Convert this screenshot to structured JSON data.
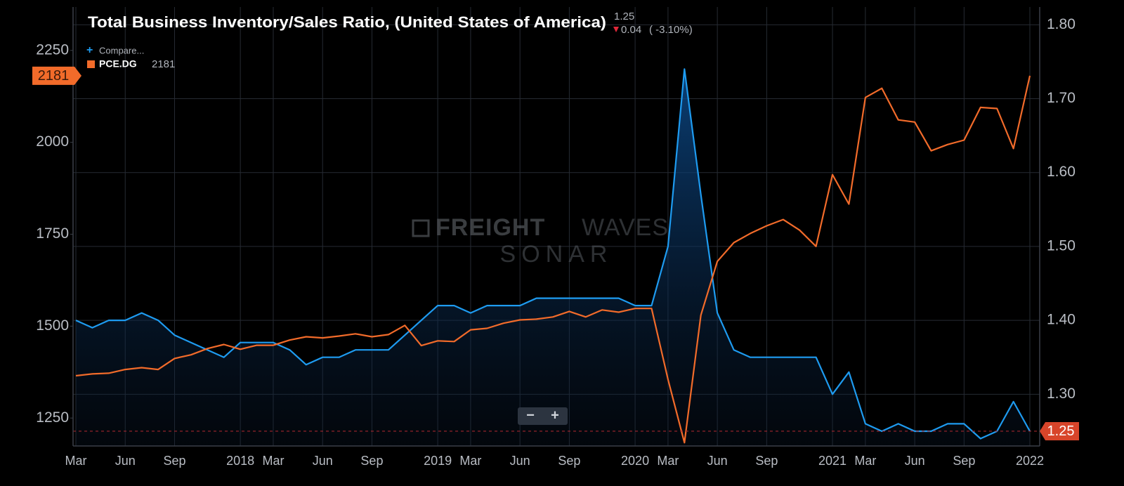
{
  "chart_data": {
    "type": "line",
    "title": "Total Business Inventory/Sales Ratio, (United States of America)",
    "current_value": 1.25,
    "change": "0.04",
    "change_pct": "( -3.10%)",
    "compare_label": "Compare...",
    "legend_value": 2181,
    "watermark": [
      "FREIGHT",
      "WAVES",
      "SONAR"
    ],
    "zoom": [
      "−",
      "+"
    ],
    "categories": [
      "Mar",
      null,
      null,
      "Jun",
      null,
      null,
      "Sep",
      null,
      null,
      null,
      "2018",
      null,
      "Mar",
      null,
      null,
      "Jun",
      null,
      null,
      "Sep",
      null,
      null,
      null,
      "2019",
      null,
      "Mar",
      null,
      null,
      "Jun",
      null,
      null,
      "Sep",
      null,
      null,
      null,
      "2020",
      null,
      "Mar",
      null,
      null,
      "Jun",
      null,
      null,
      "Sep",
      null,
      null,
      null,
      "2021",
      null,
      "Mar",
      null,
      null,
      "Jun",
      null,
      null,
      "Sep",
      null,
      null,
      null,
      "2022"
    ],
    "series": [
      {
        "color": "#1e9bf0",
        "axis": "y2",
        "area": true,
        "values": [
          1.4,
          1.39,
          1.4,
          1.4,
          1.41,
          1.4,
          1.38,
          1.37,
          1.36,
          1.35,
          1.37,
          1.37,
          1.37,
          1.36,
          1.34,
          1.35,
          1.35,
          1.36,
          1.36,
          1.36,
          1.38,
          1.4,
          1.42,
          1.42,
          1.41,
          1.42,
          1.42,
          1.42,
          1.43,
          1.43,
          1.43,
          1.43,
          1.43,
          1.43,
          1.42,
          1.42,
          1.5,
          1.74,
          1.57,
          1.41,
          1.36,
          1.35,
          1.35,
          1.35,
          1.35,
          1.35,
          1.3,
          1.33,
          1.26,
          1.25,
          1.26,
          1.25,
          1.25,
          1.26,
          1.26,
          1.24,
          1.25,
          1.29,
          1.25
        ]
      },
      {
        "name": "PCE.DG",
        "color": "#f26b2a",
        "axis": "y",
        "values": [
          1365,
          1370,
          1372,
          1382,
          1387,
          1382,
          1412,
          1422,
          1439,
          1450,
          1437,
          1448,
          1448,
          1462,
          1471,
          1468,
          1473,
          1479,
          1471,
          1477,
          1502,
          1447,
          1460,
          1458,
          1490,
          1494,
          1508,
          1517,
          1519,
          1525,
          1540,
          1525,
          1544,
          1538,
          1548,
          1548,
          1355,
          1183,
          1530,
          1676,
          1727,
          1752,
          1773,
          1790,
          1761,
          1717,
          1912,
          1832,
          2122,
          2147,
          2061,
          2055,
          1977,
          1994,
          2006,
          2095,
          2092,
          1983,
          2181
        ]
      }
    ],
    "ylim": [
      1174,
      2368
    ],
    "yticks": [
      1250,
      1500,
      1750,
      2000,
      2250
    ],
    "y2lim": [
      1.23,
      1.824
    ],
    "y2ticks": [
      {
        "value": 1.3,
        "label": "1.30"
      },
      {
        "value": 1.4,
        "label": "1.40"
      },
      {
        "value": 1.5,
        "label": "1.50"
      },
      {
        "value": 1.6,
        "label": "1.60"
      },
      {
        "value": 1.7,
        "label": "1.70"
      },
      {
        "value": 1.8,
        "label": "1.80"
      }
    ],
    "grid": true
  }
}
